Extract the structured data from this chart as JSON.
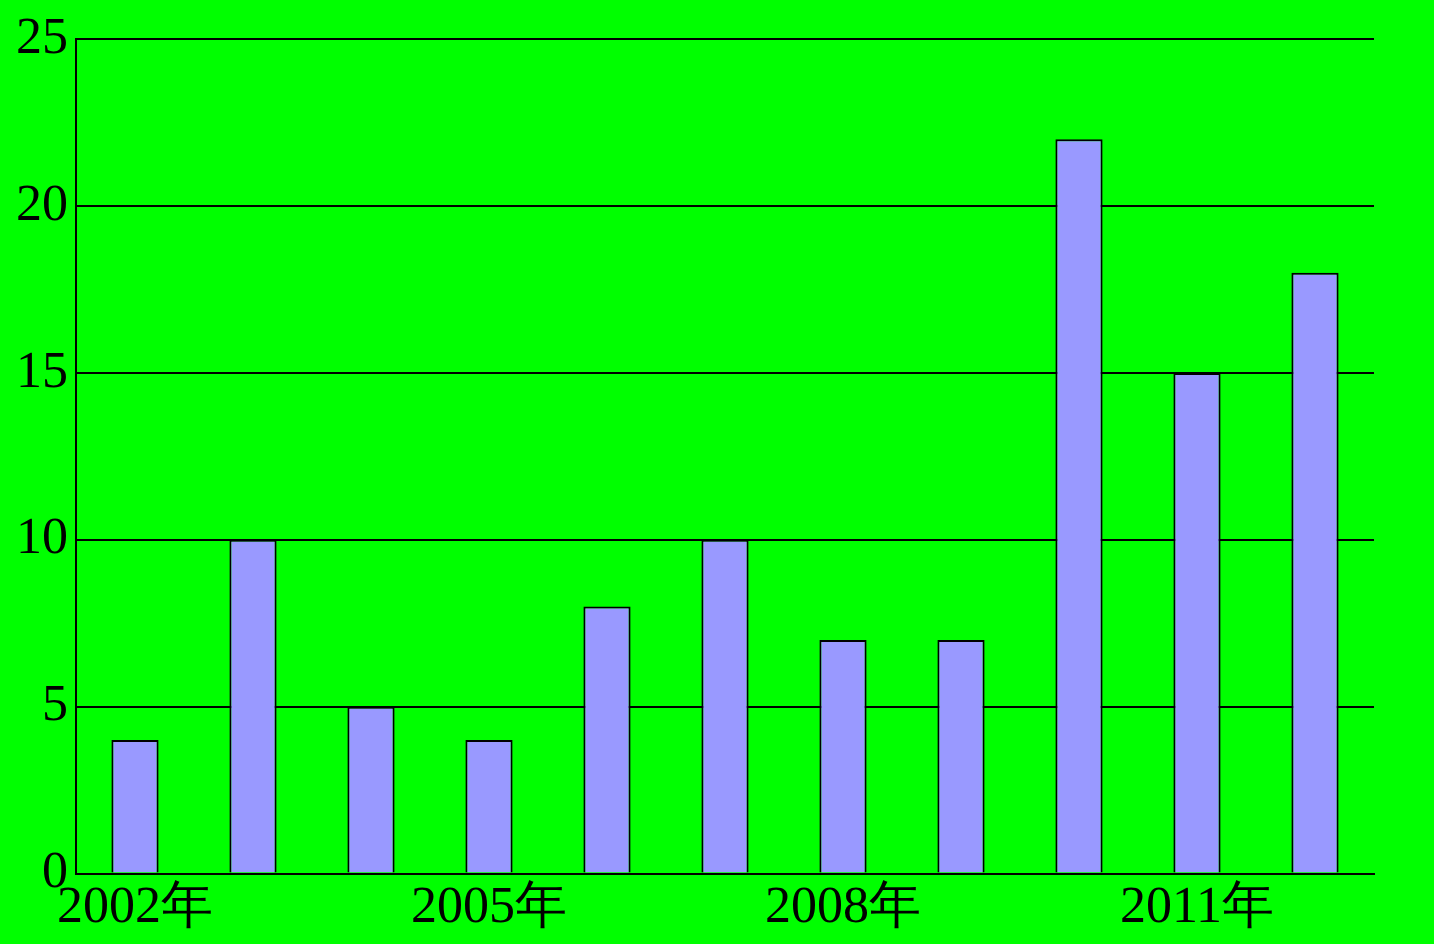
{
  "chart_data": {
    "type": "bar",
    "categories": [
      "2002年",
      null,
      null,
      "2005年",
      null,
      null,
      "2008年",
      null,
      null,
      "2011年",
      null
    ],
    "values": [
      4,
      10,
      5,
      4,
      8,
      10,
      7,
      7,
      22,
      15,
      18
    ],
    "color": "#9999ff",
    "ylim": [
      0,
      25
    ],
    "yticks": [
      0,
      5,
      10,
      15,
      20,
      25
    ],
    "grid": "y",
    "legend": false
  }
}
